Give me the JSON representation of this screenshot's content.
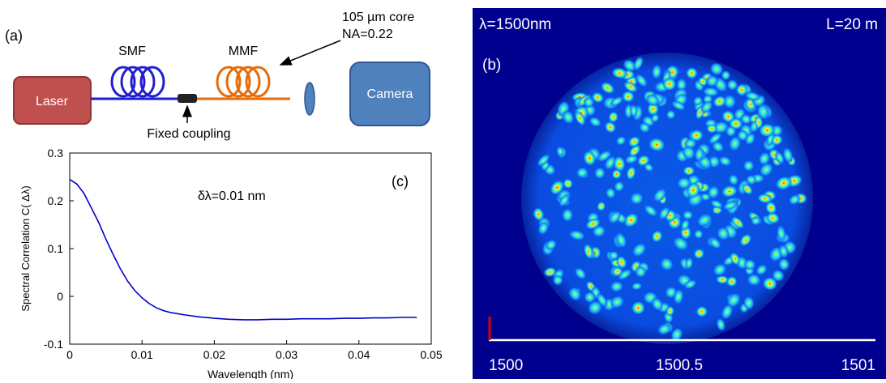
{
  "schematic": {
    "panel_label": "(a)",
    "laser_label": "Laser",
    "smf_label": "SMF",
    "mmf_label": "MMF",
    "fiber_spec_line1": "105 µm core",
    "fiber_spec_line2": "NA=0.22",
    "coupling_label": "Fixed coupling",
    "camera_label": "Camera",
    "colors": {
      "laser": "#c0504d",
      "smf": "#1f1fcf",
      "mmf": "#e46c0a",
      "camera": "#4f81bd"
    }
  },
  "chart_data": {
    "type": "line",
    "panel_label": "(c)",
    "annotation": "δλ=0.01 nm",
    "xlabel": "Wavelength (nm)",
    "ylabel": "Spectral Correlation C( Δλ)",
    "xlim": [
      0,
      0.05
    ],
    "ylim": [
      -0.1,
      0.3
    ],
    "xticks": [
      0,
      0.01,
      0.02,
      0.03,
      0.04,
      0.05
    ],
    "xtick_labels": [
      "0",
      "0.01",
      "0.02",
      "0.03",
      "0.04",
      "0.05"
    ],
    "yticks": [
      -0.1,
      0,
      0.1,
      0.2,
      0.3
    ],
    "ytick_labels": [
      "-0.1",
      "0",
      "0.1",
      "0.2",
      "0.3"
    ],
    "grid": false,
    "line_color": "#0000cc",
    "series": [
      {
        "x": [
          0,
          0.001,
          0.002,
          0.003,
          0.004,
          0.005,
          0.006,
          0.007,
          0.008,
          0.009,
          0.01,
          0.011,
          0.012,
          0.013,
          0.014,
          0.016,
          0.018,
          0.02,
          0.022,
          0.024,
          0.026,
          0.028,
          0.03,
          0.032,
          0.034,
          0.036,
          0.038,
          0.04,
          0.042,
          0.044,
          0.046,
          0.048
        ],
        "y": [
          0.245,
          0.235,
          0.215,
          0.185,
          0.155,
          0.12,
          0.088,
          0.058,
          0.032,
          0.012,
          -0.003,
          -0.015,
          -0.024,
          -0.03,
          -0.034,
          -0.039,
          -0.043,
          -0.046,
          -0.048,
          -0.049,
          -0.049,
          -0.048,
          -0.048,
          -0.047,
          -0.047,
          -0.047,
          -0.046,
          -0.046,
          -0.045,
          -0.045,
          -0.044,
          -0.044
        ]
      }
    ]
  },
  "speckle": {
    "panel_label": "(b)",
    "wavelength_label": "λ=1500nm",
    "length_label": "L=20 m",
    "scale_ticks": [
      "1500",
      "1500.5",
      "1501"
    ],
    "colors": {
      "background": "#00008f",
      "marker": "#e00000"
    }
  }
}
